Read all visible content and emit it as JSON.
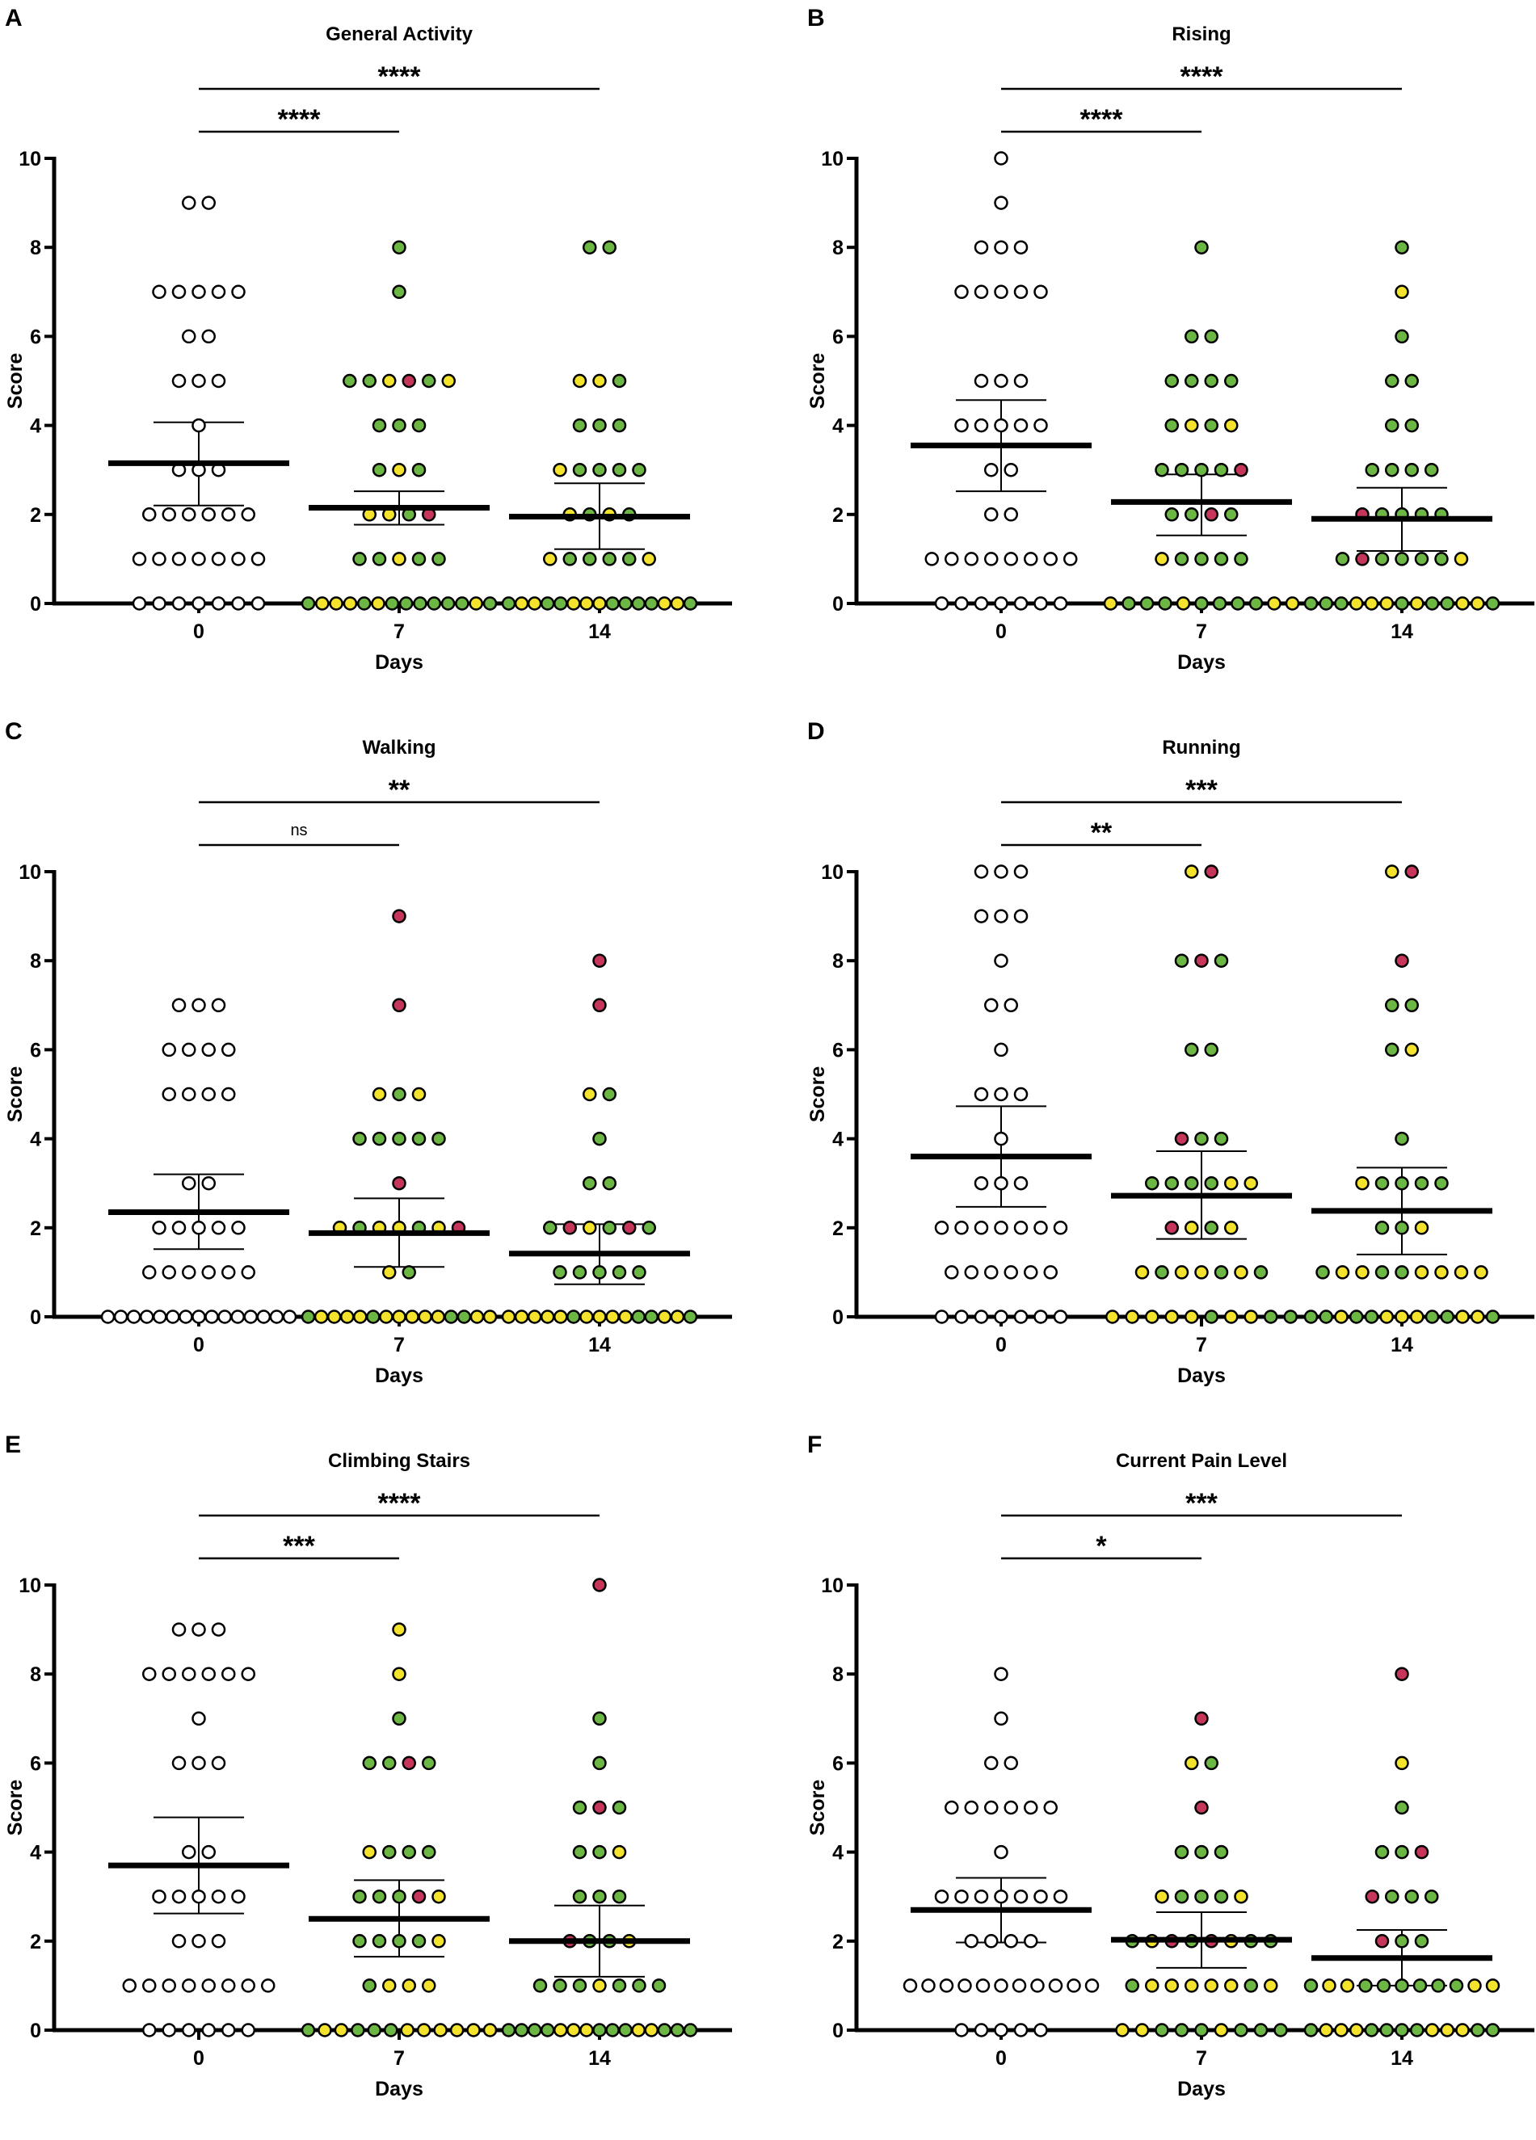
{
  "colors": {
    "w": "#ffffff",
    "g": "#6cb743",
    "y": "#f4e32c",
    "r": "#c6365a",
    "stroke": "#000000"
  },
  "chart_data": [
    {
      "type": "scatter",
      "panel_label": "A",
      "title": "General Activity",
      "xlabel": "Days",
      "ylabel": "Score",
      "ylim": [
        0,
        10
      ],
      "yticks": [
        0,
        2,
        4,
        6,
        8,
        10
      ],
      "categories": [
        "0",
        "7",
        "14"
      ],
      "significance": [
        {
          "from": "0",
          "to": "7",
          "label": "****"
        },
        {
          "from": "0",
          "to": "14",
          "label": "****"
        }
      ],
      "groups": [
        {
          "day": "0",
          "mean": 3.15,
          "ci": [
            2.2,
            4.07
          ],
          "rows": {
            "9": "ww",
            "7": "wwwww",
            "6": "ww",
            "5": "www",
            "4": "w",
            "3": "www",
            "2": "wwwwww",
            "1": "wwwwwww",
            "0": "wwwwwww"
          }
        },
        {
          "day": "7",
          "mean": 2.15,
          "ci": [
            1.77,
            2.52
          ],
          "rows": {
            "8": "g",
            "7": "g",
            "5": "ggyrgy",
            "4": "ggg",
            "3": "gyg",
            "2": "yygr",
            "1": "ggygg",
            "0": "gyyygyggggggyg"
          }
        },
        {
          "day": "14",
          "mean": 1.95,
          "ci": [
            1.22,
            2.7
          ],
          "rows": {
            "8": "gg",
            "5": "yyg",
            "4": "ggg",
            "3": "ygggg",
            "2": "ygyg",
            "1": "yggggy",
            "0": "gyyggyyyggggyyg"
          }
        }
      ]
    },
    {
      "type": "scatter",
      "panel_label": "B",
      "title": "Rising",
      "xlabel": "Days",
      "ylabel": "Score",
      "ylim": [
        0,
        10
      ],
      "yticks": [
        0,
        2,
        4,
        6,
        8,
        10
      ],
      "categories": [
        "0",
        "7",
        "14"
      ],
      "significance": [
        {
          "from": "0",
          "to": "7",
          "label": "****"
        },
        {
          "from": "0",
          "to": "14",
          "label": "****"
        }
      ],
      "groups": [
        {
          "day": "0",
          "mean": 3.55,
          "ci": [
            2.52,
            4.57
          ],
          "rows": {
            "10": "w",
            "9": "w",
            "8": "www",
            "7": "wwwww",
            "5": "www",
            "4": "wwwww",
            "3": "ww",
            "2": "ww",
            "1": "wwwwwwww",
            "0": "wwwwwww"
          }
        },
        {
          "day": "7",
          "mean": 2.28,
          "ci": [
            1.53,
            2.9
          ],
          "rows": {
            "8": "g",
            "6": "gg",
            "5": "gggg",
            "4": "gygy",
            "3": "ggggr",
            "2": "ggrg",
            "1": "ygggg",
            "0": "ygggyggggyy"
          }
        },
        {
          "day": "14",
          "mean": 1.9,
          "ci": [
            1.18,
            2.6
          ],
          "rows": {
            "8": "g",
            "7": "y",
            "6": "g",
            "5": "gg",
            "4": "gg",
            "3": "gggg",
            "2": "rgggg",
            "1": "grggggy",
            "0": "gggyyygyggyyg"
          }
        }
      ]
    },
    {
      "type": "scatter",
      "panel_label": "C",
      "title": "Walking",
      "xlabel": "Days",
      "ylabel": "Score",
      "ylim": [
        0,
        10
      ],
      "yticks": [
        0,
        2,
        4,
        6,
        8,
        10
      ],
      "categories": [
        "0",
        "7",
        "14"
      ],
      "significance": [
        {
          "from": "0",
          "to": "7",
          "label": "ns"
        },
        {
          "from": "0",
          "to": "14",
          "label": "**"
        }
      ],
      "groups": [
        {
          "day": "0",
          "mean": 2.35,
          "ci": [
            1.52,
            3.2
          ],
          "rows": {
            "7": "www",
            "6": "wwww",
            "5": "wwww",
            "3": "ww",
            "2": "wwwww",
            "1": "wwwwww",
            "0": "wwwwwwwwwwwwwww"
          }
        },
        {
          "day": "7",
          "mean": 1.88,
          "ci": [
            1.12,
            2.66
          ],
          "rows": {
            "9": "r",
            "7": "r",
            "5": "ygy",
            "4": "ggggg",
            "3": "r",
            "2": "ygyygyr",
            "1": "yg",
            "0": "gyyyygyyyyyggyy"
          }
        },
        {
          "day": "14",
          "mean": 1.42,
          "ci": [
            0.73,
            2.08
          ],
          "rows": {
            "8": "r",
            "7": "r",
            "5": "yg",
            "4": "g",
            "3": "gg",
            "2": "grygrg",
            "1": "ggggg",
            "0": "yyyyygyyyyggyyg"
          }
        }
      ]
    },
    {
      "type": "scatter",
      "panel_label": "D",
      "title": "Running",
      "xlabel": "Days",
      "ylabel": "Score",
      "ylim": [
        0,
        10
      ],
      "yticks": [
        0,
        2,
        4,
        6,
        8,
        10
      ],
      "categories": [
        "0",
        "7",
        "14"
      ],
      "significance": [
        {
          "from": "0",
          "to": "7",
          "label": "**"
        },
        {
          "from": "0",
          "to": "14",
          "label": "***"
        }
      ],
      "groups": [
        {
          "day": "0",
          "mean": 3.6,
          "ci": [
            2.47,
            4.73
          ],
          "rows": {
            "10": "www",
            "9": "www",
            "8": "w",
            "7": "ww",
            "6": "w",
            "5": "www",
            "4": "w",
            "3": "www",
            "2": "wwwwwww",
            "1": "wwwwww",
            "0": "wwwwwww"
          }
        },
        {
          "day": "7",
          "mean": 2.72,
          "ci": [
            1.75,
            3.72
          ],
          "rows": {
            "10": "yr",
            "8": "grg",
            "6": "gg",
            "4": "rgg",
            "3": "ggggyy",
            "2": "rygy",
            "1": "ygyygyg",
            "0": "yyyyygyygg"
          }
        },
        {
          "day": "14",
          "mean": 2.38,
          "ci": [
            1.4,
            3.35
          ],
          "rows": {
            "10": "yr",
            "8": "r",
            "7": "gg",
            "6": "gy",
            "4": "g",
            "3": "ygggg",
            "2": "ggy",
            "1": "gyyggyyyy",
            "0": "ggyggyyyggyyg"
          }
        }
      ]
    },
    {
      "type": "scatter",
      "panel_label": "E",
      "title": "Climbing Stairs",
      "xlabel": "Days",
      "ylabel": "Score",
      "ylim": [
        0,
        10
      ],
      "yticks": [
        0,
        2,
        4,
        6,
        8,
        10
      ],
      "categories": [
        "0",
        "7",
        "14"
      ],
      "significance": [
        {
          "from": "0",
          "to": "7",
          "label": "***"
        },
        {
          "from": "0",
          "to": "14",
          "label": "****"
        }
      ],
      "groups": [
        {
          "day": "0",
          "mean": 3.7,
          "ci": [
            2.62,
            4.78
          ],
          "rows": {
            "9": "www",
            "8": "wwwwww",
            "7": "w",
            "6": "www",
            "4": "ww",
            "3": "wwwww",
            "2": "www",
            "1": "wwwwwwww",
            "0": "wwwwww"
          }
        },
        {
          "day": "7",
          "mean": 2.5,
          "ci": [
            1.65,
            3.37
          ],
          "rows": {
            "9": "y",
            "8": "y",
            "7": "g",
            "6": "ggrg",
            "4": "yggg",
            "3": "gggry",
            "2": "ggggy",
            "1": "gyyy",
            "0": "gyygggyyyyyy"
          }
        },
        {
          "day": "14",
          "mean": 2.0,
          "ci": [
            1.2,
            2.8
          ],
          "rows": {
            "10": "r",
            "7": "g",
            "6": "g",
            "5": "grg",
            "4": "ggy",
            "3": "ggg",
            "2": "rggy",
            "1": "gggyggg",
            "0": "ggggyyygggyyggg"
          }
        }
      ]
    },
    {
      "type": "scatter",
      "panel_label": "F",
      "title": "Current Pain Level",
      "xlabel": "Days",
      "ylabel": "Score",
      "ylim": [
        0,
        10
      ],
      "yticks": [
        0,
        2,
        4,
        6,
        8,
        10
      ],
      "categories": [
        "0",
        "7",
        "14"
      ],
      "significance": [
        {
          "from": "0",
          "to": "7",
          "label": "*"
        },
        {
          "from": "0",
          "to": "14",
          "label": "***"
        }
      ],
      "groups": [
        {
          "day": "0",
          "mean": 2.7,
          "ci": [
            1.97,
            3.42
          ],
          "rows": {
            "8": "w",
            "7": "w",
            "6": "ww",
            "5": "wwwwww",
            "4": "w",
            "3": "wwwwwww",
            "2": "wwww",
            "1": "wwwwwwwwwww",
            "0": "wwwww"
          }
        },
        {
          "day": "7",
          "mean": 2.03,
          "ci": [
            1.4,
            2.65
          ],
          "rows": {
            "7": "r",
            "6": "yg",
            "5": "r",
            "4": "ggg",
            "3": "ygggy",
            "2": "gyrgrygg",
            "1": "gyyyyygy",
            "0": "yygggyggg"
          }
        },
        {
          "day": "14",
          "mean": 1.62,
          "ci": [
            1.0,
            2.25
          ],
          "rows": {
            "8": "r",
            "6": "y",
            "5": "g",
            "4": "ggr",
            "3": "rggg",
            "2": "rgg",
            "1": "gyyggggggyy",
            "0": "gyyyggggyyygg"
          }
        }
      ]
    }
  ]
}
